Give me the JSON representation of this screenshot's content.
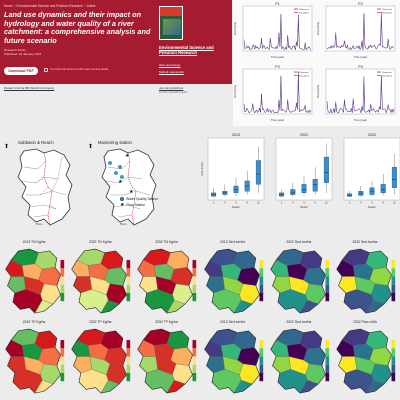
{
  "article": {
    "breadcrumb": [
      "Home",
      "Environmental Science and Pollution Research",
      "Article"
    ],
    "title": "Land use dynamics and their impact on hydrology and water quality of a river catchment: a comprehensive analysis and future scenario",
    "pubinfo": [
      "Research Article",
      "Published: 04 January 2024"
    ],
    "download_label": "Download PDF",
    "share_text": "You have full access to this open access article",
    "journal_name": "Environmental Science and Pollution Research",
    "journal_links": [
      "Aims and scope",
      "Submit manuscript"
    ],
    "doi_left": "Pawan Krishna BB Vidushi & Anupam",
    "doi_right": [
      "Journal guidelines",
      "environmental impact"
    ]
  },
  "timeseries": {
    "panels": [
      "P1",
      "P2",
      "P3",
      "P4"
    ],
    "ylabel": "Flow (m³/s)",
    "xlabel": "Time (year)",
    "legend": [
      "Observed",
      "Simulated"
    ],
    "colors": {
      "observed": "#2b3fa7",
      "simulated": "#d62728"
    }
  },
  "maps": {
    "left_title": "Subbasin & Reach",
    "right_title": "Monitoring station",
    "legend": [
      "Water Quality Station",
      "Flow Station"
    ],
    "scale": "5 km",
    "north": "N"
  },
  "boxplots": {
    "titles": [
      "2013",
      "2022",
      "2032"
    ],
    "ylabel": "Flow (m³/s)",
    "xlabel": "Reach",
    "categories": [
      "1",
      "4",
      "5",
      "9",
      "12"
    ],
    "box_color": "#3a8ed0"
  },
  "choropleths": {
    "row1": [
      "2013 TN Kg/ha",
      "2022 TN Kg/ha",
      "2032 TN Kg/ha",
      "2013 Sed ton/ha",
      "2022 Sed ton/ha",
      "2032 Sed ton/ha"
    ],
    "row2": [
      "2013 TP Kg/ha",
      "2022 TP Kg/ha",
      "2032 TP Kg/ha",
      "2013 Sed ton/ha",
      "2022 Sed ton/ha",
      "2032 Flow m3/s"
    ]
  }
}
